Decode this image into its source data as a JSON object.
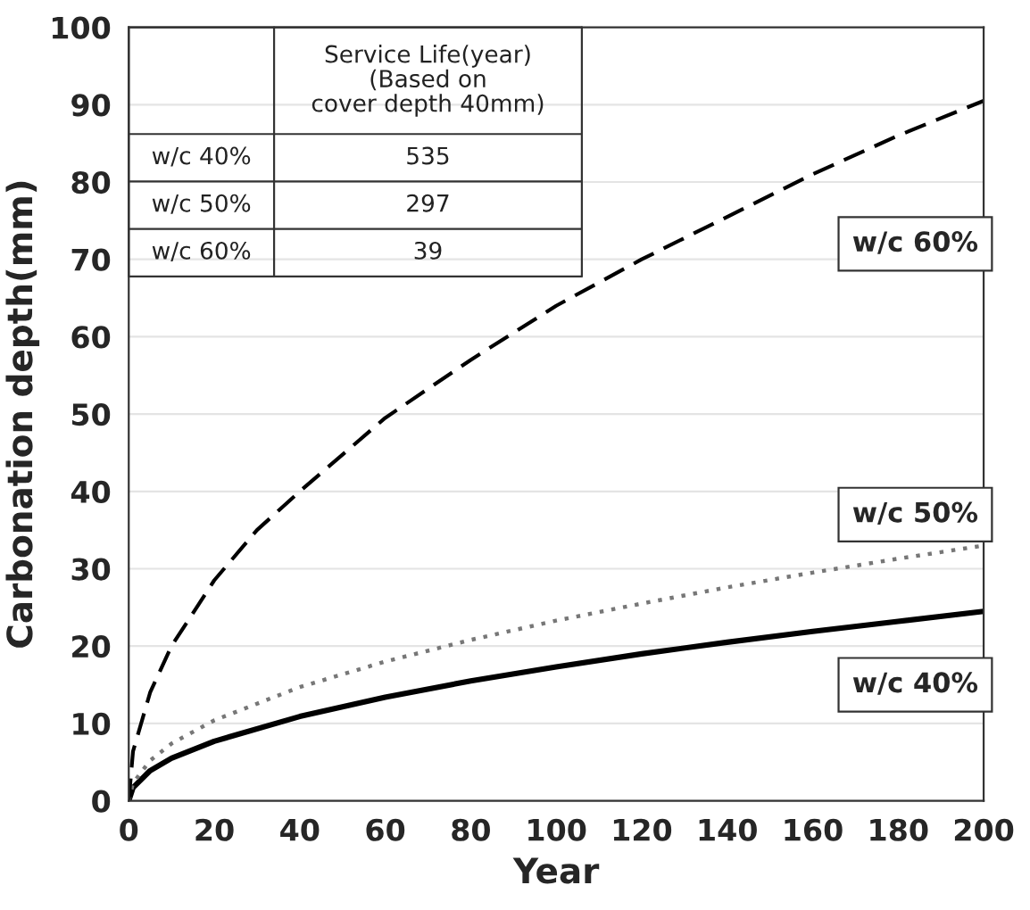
{
  "chart_data": {
    "type": "line",
    "xlabel": "Year",
    "ylabel": "Carbonation depth(mm)",
    "xlim": [
      0,
      200
    ],
    "xticks": [
      0,
      20,
      40,
      60,
      80,
      100,
      120,
      140,
      160,
      180,
      200
    ],
    "ylim": [
      0,
      100
    ],
    "yticks": [
      0,
      10,
      20,
      30,
      40,
      50,
      60,
      70,
      80,
      90,
      100
    ],
    "grid": "y",
    "series": [
      {
        "name": "w/c 40%",
        "color": "#000000",
        "line_style": "solid",
        "x": [
          0,
          1,
          5,
          10,
          20,
          40,
          60,
          80,
          100,
          120,
          140,
          160,
          180,
          200
        ],
        "values": [
          0,
          1.7,
          3.9,
          5.5,
          7.7,
          10.9,
          13.4,
          15.5,
          17.3,
          19,
          20.5,
          21.9,
          23.2,
          24.5
        ]
      },
      {
        "name": "w/c 50%",
        "color": "#777777",
        "line_style": "dotted",
        "x": [
          0,
          1,
          5,
          10,
          20,
          40,
          60,
          80,
          100,
          120,
          140,
          160,
          180,
          200
        ],
        "values": [
          0,
          2.3,
          5.2,
          7.4,
          10.4,
          14.7,
          18,
          20.8,
          23.3,
          25.5,
          27.6,
          29.5,
          31.3,
          33
        ]
      },
      {
        "name": "w/c 60%",
        "color": "#000000",
        "line_style": "dashed",
        "x": [
          0,
          1,
          5,
          10,
          20,
          30,
          40,
          60,
          80,
          100,
          120,
          140,
          160,
          180,
          200
        ],
        "values": [
          0,
          6.4,
          14,
          20,
          28.5,
          35,
          40,
          49.5,
          57,
          64,
          70,
          75.5,
          81,
          86,
          90.5
        ]
      }
    ],
    "annotations": [
      "Service Life(year)\n(Based on\ncover depth 40mm)",
      "w/c 40%",
      "535",
      "w/c 50%",
      "297",
      "w/c 60%",
      "39"
    ]
  }
}
